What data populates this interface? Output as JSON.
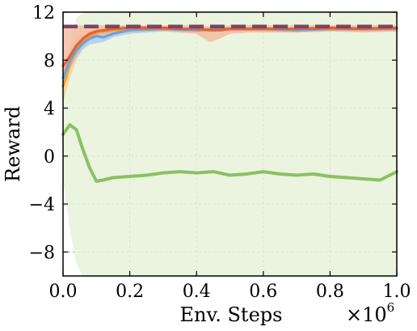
{
  "chart_data": {
    "type": "line",
    "xlabel": "Env. Steps",
    "ylabel": "Reward",
    "x_multiplier": "×10",
    "x_multiplier_exp": "6",
    "xlim": [
      0.0,
      1.0
    ],
    "ylim": [
      -10,
      12
    ],
    "x_ticks": [
      "0.0",
      "0.2",
      "0.4",
      "0.6",
      "0.8",
      "1.0"
    ],
    "y_ticks": [
      "−8",
      "−4",
      "0",
      "4",
      "8",
      "12"
    ],
    "y_tick_values": [
      -8,
      -4,
      0,
      4,
      8,
      12
    ],
    "x_tick_values": [
      0.0,
      0.2,
      0.4,
      0.6,
      0.8,
      1.0
    ],
    "grid": true,
    "reference_line": {
      "value": 10.8,
      "color": "#7a4564",
      "style": "dashed"
    },
    "series": [
      {
        "color": "#8cc063",
        "band_color": "#e6f2d9",
        "x": [
          0.0,
          0.02,
          0.04,
          0.06,
          0.08,
          0.1,
          0.12,
          0.15,
          0.2,
          0.25,
          0.3,
          0.35,
          0.4,
          0.45,
          0.5,
          0.55,
          0.6,
          0.65,
          0.7,
          0.75,
          0.8,
          0.85,
          0.9,
          0.95,
          1.0
        ],
        "y": [
          1.8,
          2.6,
          2.2,
          0.5,
          -1.0,
          -2.1,
          -2.0,
          -1.8,
          -1.7,
          -1.6,
          -1.4,
          -1.3,
          -1.4,
          -1.3,
          -1.6,
          -1.5,
          -1.3,
          -1.5,
          -1.6,
          -1.5,
          -1.7,
          -1.8,
          -1.9,
          -2.0,
          -1.3
        ],
        "lower": [
          -2.0,
          -6.0,
          -9.0,
          -10,
          -10,
          -10,
          -10,
          -10,
          -10,
          -10,
          -10,
          -10,
          -10,
          -10,
          -10,
          -10,
          -10,
          -10,
          -10,
          -10,
          -10,
          -10,
          -10,
          -10,
          -10
        ],
        "upper": [
          6.0,
          9.0,
          11.5,
          12,
          12,
          12,
          12,
          12,
          12,
          12,
          12,
          12,
          12,
          12,
          12,
          12,
          12,
          12,
          12,
          12,
          12,
          12,
          12,
          12,
          12
        ]
      },
      {
        "color": "#f0a040",
        "band_color": "#f6cc8f",
        "x": [
          0.0,
          0.02,
          0.04,
          0.06,
          0.08,
          0.1,
          0.15,
          0.2,
          0.3,
          0.4,
          0.5,
          0.6,
          0.7,
          0.8,
          0.9,
          1.0
        ],
        "y": [
          5.8,
          7.6,
          8.8,
          9.6,
          10.0,
          10.3,
          10.5,
          10.6,
          10.6,
          10.5,
          10.6,
          10.6,
          10.5,
          10.6,
          10.6,
          10.6
        ],
        "lower": [
          4.5,
          6.5,
          8.0,
          9.0,
          9.6,
          9.9,
          10.2,
          10.3,
          10.4,
          10.3,
          10.4,
          10.4,
          10.3,
          10.4,
          10.4,
          10.4
        ],
        "upper": [
          7.0,
          8.8,
          9.8,
          10.2,
          10.5,
          10.6,
          10.8,
          10.8,
          10.8,
          10.7,
          10.8,
          10.8,
          10.7,
          10.8,
          10.8,
          10.8
        ]
      },
      {
        "color": "#6fa0d8",
        "band_color": "#a8c8ec",
        "x": [
          0.0,
          0.02,
          0.04,
          0.06,
          0.08,
          0.1,
          0.12,
          0.15,
          0.2,
          0.3,
          0.4,
          0.5,
          0.6,
          0.7,
          0.8,
          0.9,
          1.0
        ],
        "y": [
          6.5,
          8.0,
          8.8,
          9.4,
          9.8,
          10.0,
          9.9,
          10.2,
          10.5,
          10.6,
          10.5,
          10.6,
          10.6,
          10.5,
          10.6,
          10.6,
          10.6
        ],
        "lower": [
          5.5,
          7.2,
          8.2,
          8.9,
          9.3,
          9.4,
          9.5,
          9.9,
          10.2,
          10.4,
          10.3,
          10.4,
          10.4,
          10.3,
          10.4,
          10.4,
          10.4
        ],
        "upper": [
          7.5,
          8.8,
          9.4,
          9.9,
          10.2,
          10.4,
          10.4,
          10.5,
          10.7,
          10.8,
          10.7,
          10.8,
          10.8,
          10.7,
          10.8,
          10.8,
          10.8
        ]
      },
      {
        "color": "#e8602c",
        "band_color": "#f3b49a",
        "x": [
          0.0,
          0.02,
          0.04,
          0.06,
          0.08,
          0.1,
          0.15,
          0.2,
          0.25,
          0.3,
          0.35,
          0.4,
          0.44,
          0.47,
          0.5,
          0.55,
          0.6,
          0.7,
          0.8,
          0.9,
          1.0
        ],
        "y": [
          7.5,
          8.3,
          9.2,
          9.8,
          10.2,
          10.4,
          10.6,
          10.7,
          10.7,
          10.7,
          10.6,
          10.6,
          10.5,
          10.5,
          10.6,
          10.6,
          10.6,
          10.6,
          10.7,
          10.6,
          10.7
        ],
        "lower": [
          6.5,
          7.5,
          8.5,
          9.3,
          9.8,
          10.1,
          10.3,
          10.4,
          10.4,
          10.4,
          10.3,
          10.2,
          9.5,
          9.8,
          10.2,
          10.3,
          10.3,
          10.3,
          10.4,
          10.3,
          10.4
        ],
        "upper": [
          10.6,
          10.8,
          10.9,
          10.9,
          10.9,
          10.9,
          10.9,
          10.9,
          10.9,
          10.9,
          10.9,
          10.9,
          10.8,
          10.8,
          10.9,
          10.9,
          10.9,
          10.9,
          10.9,
          10.9,
          10.9
        ]
      }
    ]
  }
}
